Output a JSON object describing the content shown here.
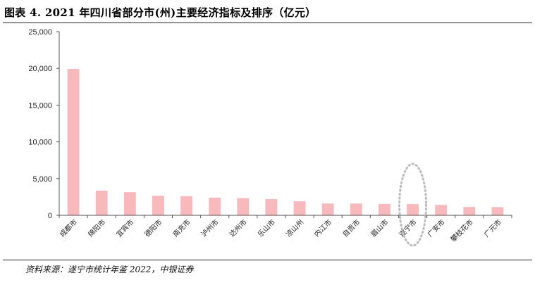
{
  "figure": {
    "title": "图表 4. 2021 年四川省部分市(州)主要经济指标及排序（亿元）",
    "source": "资料来源：遂宁市统计年鉴 2022，中银证券"
  },
  "colors": {
    "bar": "#f7b9bc",
    "axis": "#555555",
    "highlight": "#bdbdbd"
  },
  "chart_data": {
    "type": "bar",
    "categories": [
      "成都市",
      "绵阳市",
      "宜宾市",
      "德阳市",
      "南充市",
      "泸州市",
      "达州市",
      "乐山市",
      "凉山州",
      "内江市",
      "自贡市",
      "眉山市",
      "遂宁市",
      "广安市",
      "攀枝花市",
      "广元市"
    ],
    "values": [
      19917,
      3350,
      3148,
      2656,
      2602,
      2406,
      2351,
      2205,
      1902,
      1606,
      1601,
      1548,
      1520,
      1417,
      1134,
      1116
    ],
    "yticks": [
      "0",
      "5,000",
      "10,000",
      "15,000",
      "20,000",
      "25,000"
    ],
    "ylim": [
      0,
      25000
    ],
    "grid": false,
    "legend": "none",
    "highlight_category": "遂宁市"
  }
}
